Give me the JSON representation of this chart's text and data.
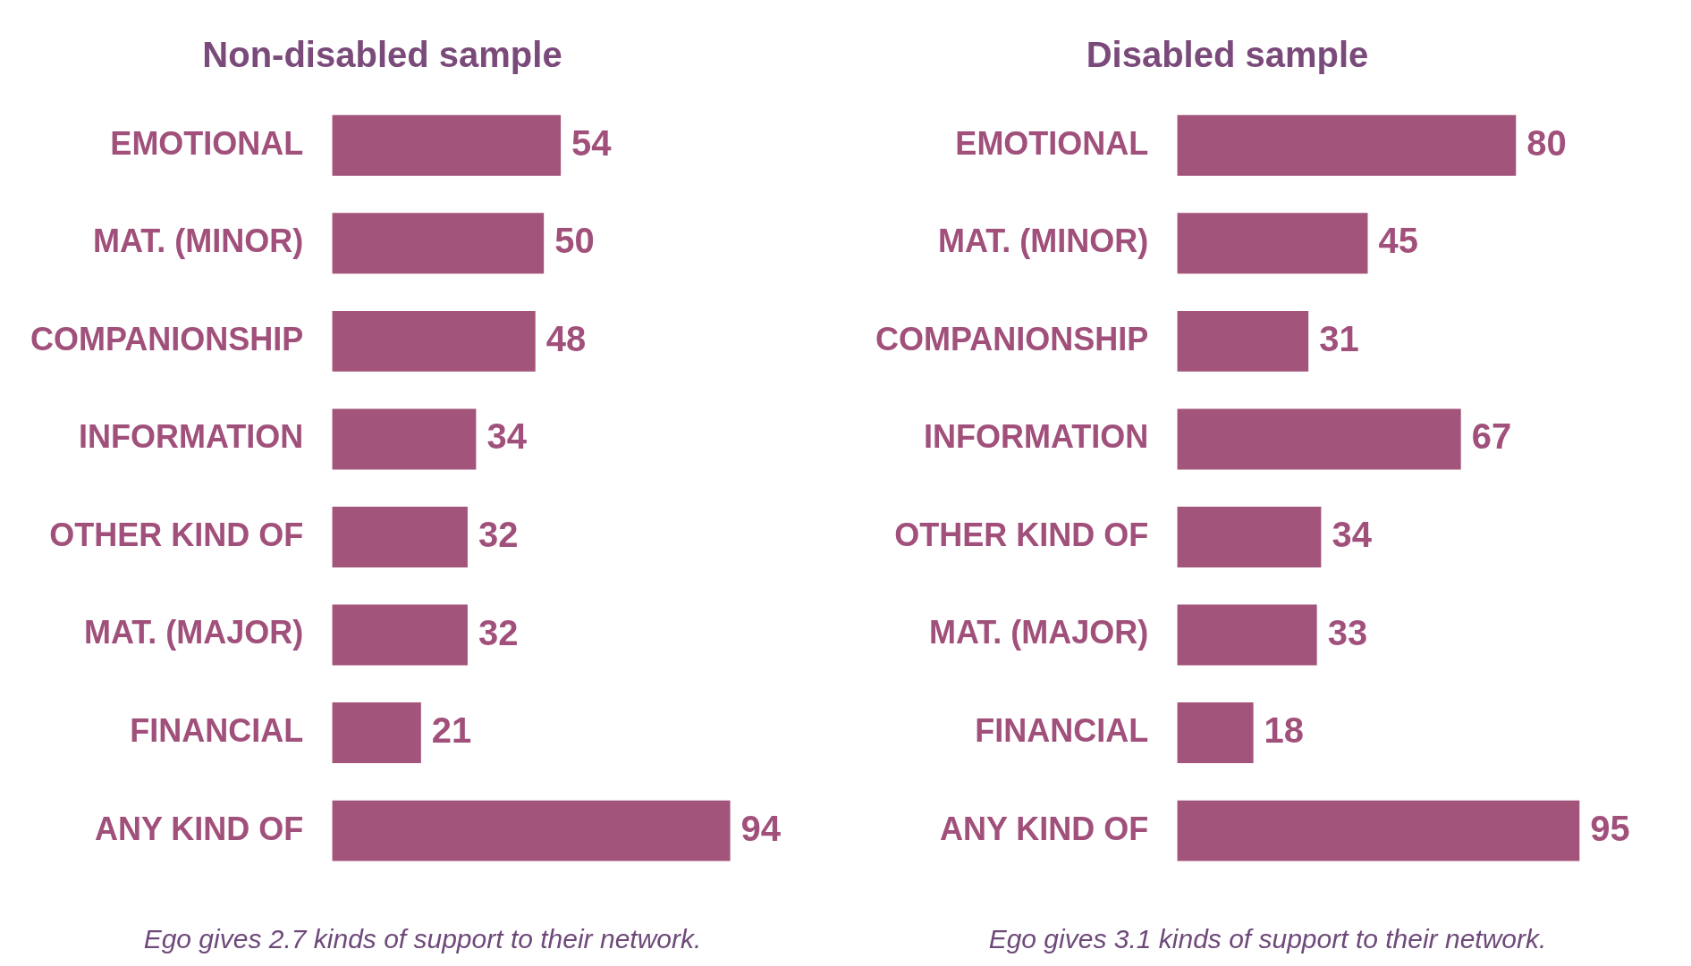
{
  "chart_data": [
    {
      "type": "bar",
      "orientation": "horizontal",
      "title": "Non-disabled sample",
      "categories": [
        "EMOTIONAL",
        "MAT. (MINOR)",
        "COMPANIONSHIP",
        "INFORMATION",
        "OTHER KIND OF",
        "MAT. (MAJOR)",
        "FINANCIAL",
        "ANY KIND OF"
      ],
      "values": [
        54,
        50,
        48,
        34,
        32,
        32,
        21,
        94
      ],
      "color": "#a3547a",
      "data_labels": true,
      "tick_labels": "y",
      "annotations": [
        "Ego gives 2.7 kinds of support to their network."
      ]
    },
    {
      "type": "bar",
      "orientation": "horizontal",
      "title": "Disabled sample",
      "categories": [
        "EMOTIONAL",
        "MAT. (MINOR)",
        "COMPANIONSHIP",
        "INFORMATION",
        "OTHER KIND OF",
        "MAT. (MAJOR)",
        "FINANCIAL",
        "ANY KIND OF"
      ],
      "values": [
        80,
        45,
        31,
        67,
        34,
        33,
        18,
        95
      ],
      "color": "#a3547a",
      "data_labels": true,
      "tick_labels": "y",
      "annotations": [
        "Ego gives 3.1 kinds of support to their network."
      ]
    }
  ]
}
